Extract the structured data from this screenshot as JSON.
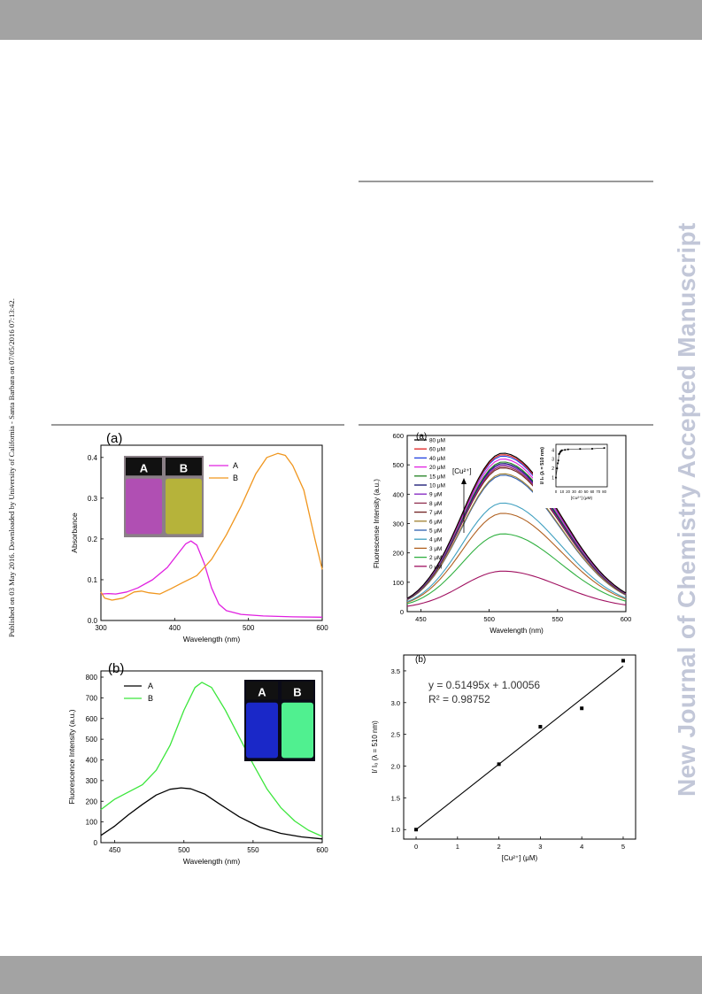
{
  "page": {
    "side_journal_text": "New Journal of Chemistry Accepted Manuscript",
    "published_note": "Published on 03 May 2016. Downloaded by University of California - Santa Barbara on 07/05/2016 07:13:42."
  },
  "colors": {
    "band": "#a3a3a3",
    "watermark": "#c2c7d8",
    "magenta": "#e020e0",
    "orange": "#f0961e",
    "green": "#3ce63c"
  },
  "chart_data": [
    {
      "id": "fig1a",
      "type": "line",
      "panel_label": "(a)",
      "xlabel": "Wavelength (nm)",
      "ylabel": "Absorbance",
      "xlim": [
        300,
        600
      ],
      "ylim": [
        0.0,
        0.43
      ],
      "xticks": [
        300,
        400,
        500,
        600
      ],
      "yticks": [
        0.0,
        0.1,
        0.2,
        0.3,
        0.4
      ],
      "ytick_labels": [
        "0.0",
        "0.1",
        "0.2",
        "0.3",
        "0.4"
      ],
      "legend_position": "top-right",
      "photo_labels": [
        "A",
        "B"
      ],
      "series": [
        {
          "name": "A",
          "color": "#e020e0",
          "x": [
            300,
            310,
            320,
            335,
            350,
            370,
            390,
            405,
            415,
            422,
            430,
            440,
            450,
            460,
            470,
            490,
            520,
            560,
            600
          ],
          "y": [
            0.065,
            0.066,
            0.065,
            0.07,
            0.08,
            0.1,
            0.13,
            0.165,
            0.188,
            0.195,
            0.185,
            0.14,
            0.08,
            0.04,
            0.024,
            0.015,
            0.011,
            0.009,
            0.008
          ]
        },
        {
          "name": "B",
          "color": "#f0961e",
          "x": [
            300,
            305,
            315,
            330,
            345,
            355,
            365,
            380,
            395,
            410,
            430,
            450,
            470,
            490,
            510,
            525,
            540,
            550,
            560,
            575,
            590,
            600
          ],
          "y": [
            0.07,
            0.055,
            0.05,
            0.055,
            0.07,
            0.072,
            0.068,
            0.065,
            0.078,
            0.092,
            0.11,
            0.15,
            0.21,
            0.28,
            0.36,
            0.4,
            0.41,
            0.405,
            0.38,
            0.32,
            0.2,
            0.125
          ]
        }
      ]
    },
    {
      "id": "fig1b",
      "type": "line",
      "panel_label": "(b)",
      "xlabel": "Wavelength (nm)",
      "ylabel": "Fluorescence Intensity (a.u.)",
      "xlim": [
        440,
        600
      ],
      "ylim": [
        0,
        830
      ],
      "xticks": [
        450,
        500,
        550,
        600
      ],
      "yticks": [
        0,
        100,
        200,
        300,
        400,
        500,
        600,
        700,
        800
      ],
      "ytick_labels": [
        "0",
        "100",
        "200",
        "300",
        "400",
        "500",
        "600",
        "700",
        "800"
      ],
      "legend_position": "top-left",
      "photo_labels": [
        "A",
        "B"
      ],
      "series": [
        {
          "name": "A",
          "color": "#000000",
          "x": [
            440,
            450,
            460,
            470,
            480,
            490,
            498,
            505,
            515,
            525,
            540,
            555,
            570,
            585,
            600
          ],
          "y": [
            35,
            80,
            135,
            185,
            230,
            258,
            265,
            260,
            235,
            190,
            125,
            75,
            45,
            28,
            18
          ]
        },
        {
          "name": "B",
          "color": "#3ce63c",
          "x": [
            440,
            450,
            460,
            470,
            480,
            490,
            500,
            508,
            513,
            520,
            530,
            540,
            550,
            560,
            570,
            580,
            590,
            600
          ],
          "y": [
            160,
            210,
            245,
            280,
            350,
            470,
            640,
            750,
            775,
            750,
            640,
            510,
            380,
            260,
            170,
            105,
            60,
            30
          ]
        }
      ]
    },
    {
      "id": "fig2a",
      "type": "line",
      "panel_label": "(a)",
      "xlabel": "Wavelength (nm)",
      "ylabel": "Fluorescense Intensity (a.u.)",
      "xlim": [
        440,
        600
      ],
      "ylim": [
        0,
        600
      ],
      "xticks": [
        450,
        500,
        550,
        600
      ],
      "yticks": [
        0,
        100,
        200,
        300,
        400,
        500,
        600
      ],
      "ytick_labels": [
        "0",
        "100",
        "200",
        "300",
        "400",
        "500",
        "600"
      ],
      "legend_position": "top-left",
      "arrow_label": "[Cu²⁺]",
      "series": [
        {
          "name": "80 μM",
          "color": "#000000",
          "peak": 530
        },
        {
          "name": "60 μM",
          "color": "#e02020",
          "peak": 525
        },
        {
          "name": "40 μM",
          "color": "#2040e0",
          "peak": 520
        },
        {
          "name": "20 μM",
          "color": "#e020e0",
          "peak": 510
        },
        {
          "name": "15 μM",
          "color": "#208020",
          "peak": 500
        },
        {
          "name": "10 μM",
          "color": "#101070",
          "peak": 495
        },
        {
          "name": "9 μM",
          "color": "#8020c0",
          "peak": 490
        },
        {
          "name": "8 μM",
          "color": "#903050",
          "peak": 485
        },
        {
          "name": "7 μM",
          "color": "#702020",
          "peak": 480
        },
        {
          "name": "6 μM",
          "color": "#a08030",
          "peak": 460
        },
        {
          "name": "5 μM",
          "color": "#3060b0",
          "peak": 455
        },
        {
          "name": "4 μM",
          "color": "#40a0c0",
          "peak": 360
        },
        {
          "name": "3 μM",
          "color": "#b06020",
          "peak": 325
        },
        {
          "name": "2 μM",
          "color": "#30b040",
          "peak": 255
        },
        {
          "name": "0 μM",
          "color": "#a01060",
          "peak": 128
        }
      ],
      "inset": {
        "xlabel": "[Cu²⁺] (μM)",
        "ylabel": "I/ I₀ (λ = 510 nm)",
        "xlim": [
          0,
          85
        ],
        "ylim": [
          0,
          4.6
        ],
        "xticks": [
          0,
          10,
          20,
          30,
          40,
          50,
          60,
          70,
          80
        ],
        "yticks": [
          1,
          2,
          3,
          4
        ],
        "x": [
          0,
          2,
          3,
          4,
          5,
          6,
          7,
          8,
          9,
          10,
          15,
          20,
          40,
          60,
          80
        ],
        "y": [
          1,
          2.0,
          2.55,
          2.85,
          3.55,
          3.6,
          3.75,
          3.85,
          3.9,
          3.95,
          4.0,
          4.05,
          4.1,
          4.12,
          4.2
        ]
      }
    },
    {
      "id": "fig2b",
      "type": "scatter",
      "panel_label": "(b)",
      "xlabel": "[Cu²⁺] (μM)",
      "ylabel": "I/ I₀ (λ = 510 nm)",
      "xlim": [
        -0.3,
        5.3
      ],
      "ylim": [
        0.85,
        3.75
      ],
      "xticks": [
        0,
        1,
        2,
        3,
        4,
        5
      ],
      "yticks": [
        1.0,
        1.5,
        2.0,
        2.5,
        3.0,
        3.5
      ],
      "ytick_labels": [
        "1.0",
        "1.5",
        "2.0",
        "2.5",
        "3.0",
        "3.5"
      ],
      "equation": "y = 0.51495x + 1.00056",
      "r2": "R² = 0.98752",
      "fit": {
        "slope": 0.51495,
        "intercept": 1.00056
      },
      "points": {
        "x": [
          0,
          2,
          3,
          4,
          5
        ],
        "y": [
          1.0,
          2.03,
          2.62,
          2.91,
          3.66
        ]
      }
    }
  ]
}
